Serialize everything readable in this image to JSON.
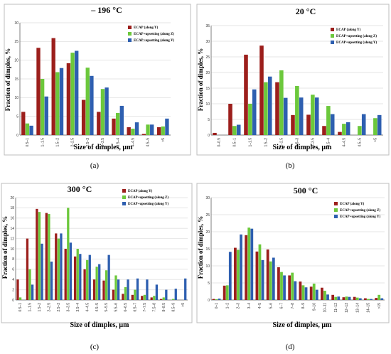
{
  "captions": [
    "(a)",
    "(b)",
    "(c)",
    "(d)"
  ],
  "colors": {
    "Y": "#9c1f1c",
    "Z": "#6cc83c",
    "YU": "#2e5fb0"
  },
  "chart_data": [
    {
      "type": "bar",
      "title": "– 196 °C",
      "xlabel": "Size of dimples, μm",
      "ylabel": "Fraction of dimples, %",
      "ylim": [
        0,
        30
      ],
      "yticks": [
        0,
        5,
        10,
        15,
        20,
        25,
        30
      ],
      "categories": [
        "0.5–1",
        "1–1.5",
        "1.5–2",
        "2–2.5",
        "2.5–3",
        "3–3.5",
        "3.5–4",
        "4–4.5",
        "4.5–5",
        ">5"
      ],
      "series": [
        {
          "name": "ECAP (along Y)",
          "color_key": "Y",
          "values": [
            6.2,
            23.3,
            25.9,
            19.2,
            9.4,
            6.2,
            4.4,
            2.1,
            0.3,
            2.1
          ]
        },
        {
          "name": "ECAP+upsetting (along Z)",
          "color_key": "Z",
          "values": [
            3.1,
            15.0,
            16.8,
            22.0,
            18.0,
            12.3,
            5.9,
            1.7,
            2.8,
            2.3
          ]
        },
        {
          "name": "ECAP+upsetting (along Y)",
          "color_key": "YU",
          "values": [
            2.5,
            10.3,
            17.9,
            22.5,
            15.8,
            12.7,
            7.8,
            3.4,
            2.8,
            4.4
          ]
        }
      ]
    },
    {
      "type": "bar",
      "title": "20 °C",
      "xlabel": "Size of dimples, μm",
      "ylabel": "Fraction of dimples, %",
      "ylim": [
        0,
        35
      ],
      "yticks": [
        0,
        5,
        10,
        15,
        20,
        25,
        30,
        35
      ],
      "categories": [
        "0–0.5",
        "0.5–1",
        "1–1.5",
        "1.5–2",
        "2–2.5",
        "2.5–3",
        "3–3.5",
        "3.5–4",
        "4–4.5",
        "4.5–5",
        ">5"
      ],
      "series": [
        {
          "name": "ECAP (along Y)",
          "color_key": "Y",
          "values": [
            0.7,
            10.0,
            25.7,
            28.6,
            16.9,
            6.4,
            6.5,
            2.9,
            1.0,
            0.0,
            0.0
          ]
        },
        {
          "name": "ECAP+upsetting (along Z)",
          "color_key": "Z",
          "values": [
            0.0,
            2.9,
            10.0,
            16.9,
            20.7,
            15.7,
            12.9,
            9.3,
            3.6,
            2.9,
            5.4
          ]
        },
        {
          "name": "ECAP+upsetting (along Y)",
          "color_key": "YU",
          "values": [
            0.0,
            3.3,
            14.6,
            18.7,
            11.9,
            12.0,
            12.0,
            6.7,
            4.1,
            6.7,
            6.4
          ]
        }
      ]
    },
    {
      "type": "bar",
      "title": "300 °C",
      "xlabel": "Size of dimples, μm",
      "ylabel": "Fraction of dimples, %",
      "ylim": [
        0,
        20
      ],
      "yticks": [
        0,
        2,
        4,
        6,
        8,
        10,
        12,
        14,
        16,
        18,
        20
      ],
      "categories": [
        "0.5–1",
        "1–1.5",
        "1.5–2",
        "2–2.5",
        "2.5–3",
        "3–3.5",
        "3.5–4",
        "4–4.5",
        "4.5–5",
        "5–5.5",
        "5.5–6",
        "6–6.5",
        "6.5–7",
        "7–7.5",
        "7.5–8",
        "8–8.5",
        "8.5–9",
        ">9"
      ],
      "series": [
        {
          "name": "ECAP (along Y)",
          "color_key": "Y",
          "values": [
            4.0,
            12.0,
            17.8,
            17.0,
            13.0,
            10.0,
            8.5,
            6.0,
            4.0,
            3.8,
            2.0,
            1.2,
            1.0,
            0.8,
            0.5,
            0.2,
            0.0,
            0.0
          ]
        },
        {
          "name": "ECAP+upsetting (along Z)",
          "color_key": "Z",
          "values": [
            0.5,
            6.0,
            17.2,
            16.8,
            12.0,
            18.0,
            10.0,
            7.8,
            6.5,
            5.8,
            4.8,
            2.5,
            2.0,
            1.0,
            0.8,
            0.5,
            0.2,
            0.0
          ]
        },
        {
          "name": "ECAP+upsetting (along Y)",
          "color_key": "YU",
          "values": [
            0.0,
            3.0,
            11.0,
            7.5,
            13.0,
            11.2,
            9.0,
            8.8,
            7.0,
            8.8,
            4.0,
            4.0,
            4.2,
            4.0,
            3.0,
            2.0,
            2.2,
            4.2
          ]
        }
      ]
    },
    {
      "type": "bar",
      "title": "500 °C",
      "xlabel": "Size of dimples, μm",
      "ylabel": "Fraction of dimples, %",
      "ylim": [
        0,
        30
      ],
      "yticks": [
        0,
        5,
        10,
        15,
        20,
        25,
        30
      ],
      "categories": [
        "0–1",
        "1–2",
        "2–3",
        "3–4",
        "4–5",
        "5–6",
        "6–7",
        "7–8",
        "8–9",
        "9–10",
        "10–11",
        "11–12",
        "12–13",
        "13–14",
        "14–15",
        ">15"
      ],
      "series": [
        {
          "name": "ECAP (along Y)",
          "color_key": "Y",
          "values": [
            0.3,
            4.2,
            15.3,
            19.0,
            14.2,
            14.8,
            9.6,
            7.2,
            5.4,
            3.9,
            3.6,
            1.5,
            0.8,
            0.9,
            0.5,
            0.6
          ]
        },
        {
          "name": "ECAP+upsetting (along Z)",
          "color_key": "Z",
          "values": [
            0.2,
            4.3,
            14.7,
            21.2,
            16.3,
            11.3,
            8.2,
            8.0,
            4.3,
            4.8,
            2.7,
            0.9,
            1.0,
            0.7,
            0.3,
            1.5
          ]
        },
        {
          "name": "ECAP+upsetting (along Y)",
          "color_key": "YU",
          "values": [
            0.4,
            14.1,
            19.2,
            20.9,
            11.7,
            12.4,
            7.2,
            5.5,
            3.7,
            3.0,
            1.6,
            1.0,
            0.9,
            0.5,
            0.3,
            0.5
          ]
        }
      ]
    }
  ]
}
